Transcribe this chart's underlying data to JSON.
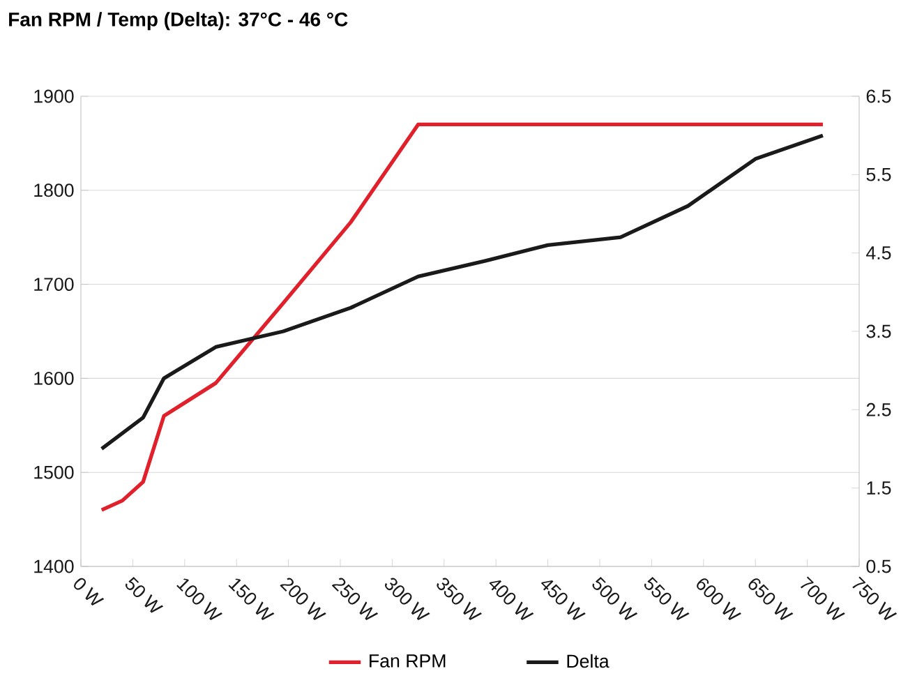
{
  "chart_data": {
    "type": "line",
    "title": "Fan RPM / Temp (Delta): 37°C - 46 °C",
    "x": [
      20,
      40,
      60,
      80,
      130,
      195,
      260,
      325,
      390,
      450,
      520,
      585,
      650,
      715
    ],
    "series": [
      {
        "name": "Fan RPM",
        "color": "#e0202a",
        "values": [
          1460,
          1470,
          1490,
          1560,
          1595,
          1680,
          1766,
          1870,
          1870,
          1870,
          1870,
          1870,
          1870,
          1870
        ]
      },
      {
        "name": "Delta",
        "color": "#1a1a1a",
        "axis": "y2",
        "values": [
          2.0,
          2.2,
          2.4,
          2.9,
          3.3,
          3.5,
          3.8,
          4.2,
          4.4,
          4.6,
          4.7,
          5.1,
          5.7,
          6.0
        ]
      }
    ],
    "xlim": [
      0,
      750
    ],
    "xticks": [
      {
        "value": 0,
        "label": "0 W"
      },
      {
        "value": 50,
        "label": "50 W"
      },
      {
        "value": 100,
        "label": "100 W"
      },
      {
        "value": 150,
        "label": "150 W"
      },
      {
        "value": 200,
        "label": "200 W"
      },
      {
        "value": 250,
        "label": "250 W"
      },
      {
        "value": 300,
        "label": "300 W"
      },
      {
        "value": 350,
        "label": "350 W"
      },
      {
        "value": 400,
        "label": "400 W"
      },
      {
        "value": 450,
        "label": "450 W"
      },
      {
        "value": 500,
        "label": "500 W"
      },
      {
        "value": 550,
        "label": "550 W"
      },
      {
        "value": 600,
        "label": "600 W"
      },
      {
        "value": 650,
        "label": "650 W"
      },
      {
        "value": 700,
        "label": "700 W"
      },
      {
        "value": 750,
        "label": "750 W"
      }
    ],
    "ylim": [
      1400,
      1900
    ],
    "yticks": [
      1400,
      1500,
      1600,
      1700,
      1800,
      1900
    ],
    "y2lim": [
      0.5,
      6.5
    ],
    "y2ticks": [
      0.5,
      1.5,
      2.5,
      3.5,
      4.5,
      5.5,
      6.5
    ],
    "grid": "y",
    "legend": "bottom",
    "marker": "none",
    "line_style": "solid"
  }
}
